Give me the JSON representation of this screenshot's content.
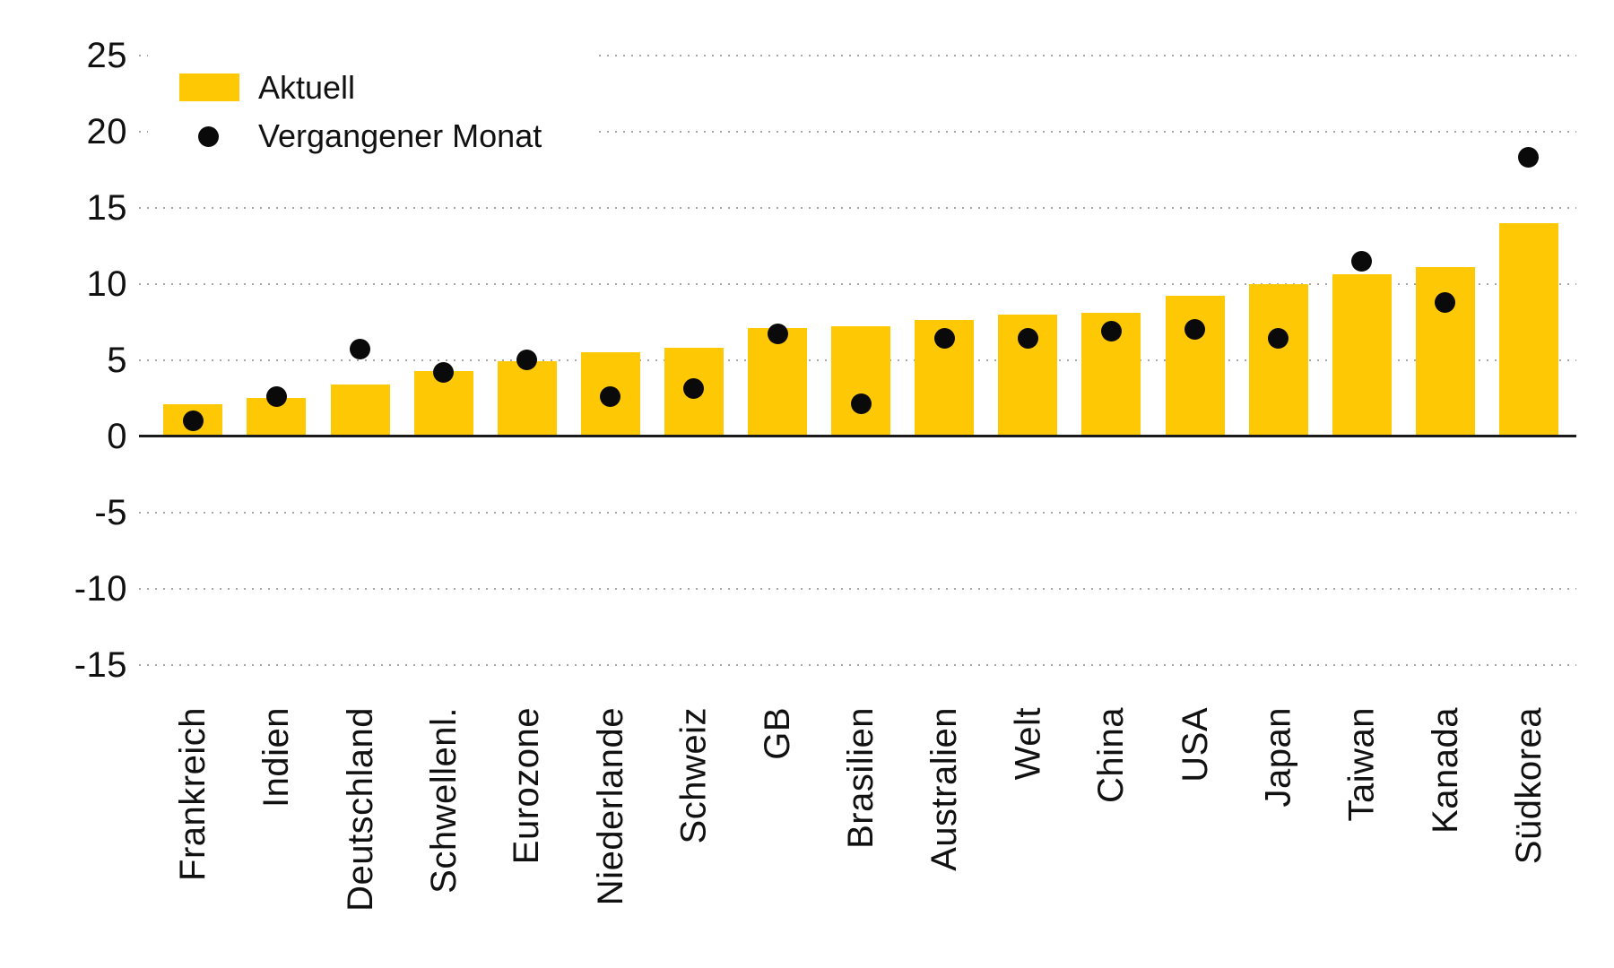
{
  "colors": {
    "bar": "#FFC805",
    "dot": "#0a0a0a",
    "grid": "#a6a6a6",
    "axis": "#1a1a1a",
    "text": "#111111",
    "background": "#ffffff"
  },
  "legend": {
    "items": [
      {
        "label": "Aktuell",
        "marker": "bar-swatch"
      },
      {
        "label": "Vergangener Monat",
        "marker": "dot"
      }
    ]
  },
  "chart_data": {
    "type": "bar",
    "title": "",
    "xlabel": "",
    "ylabel": "",
    "categories": [
      "Frankreich",
      "Indien",
      "Deutschland",
      "Schwellenl.",
      "Eurozone",
      "Niederlande",
      "Schweiz",
      "GB",
      "Brasilien",
      "Australien",
      "Welt",
      "China",
      "USA",
      "Japan",
      "Taiwan",
      "Kanada",
      "Südkorea"
    ],
    "series": [
      {
        "name": "Aktuell",
        "type": "bar",
        "values": [
          2.1,
          2.5,
          3.4,
          4.3,
          4.9,
          5.5,
          5.8,
          7.1,
          7.2,
          7.6,
          8.0,
          8.1,
          9.2,
          10.0,
          10.6,
          11.1,
          14.0
        ]
      },
      {
        "name": "Vergangener Monat",
        "type": "scatter",
        "values": [
          1.0,
          2.6,
          5.7,
          4.2,
          5.0,
          2.6,
          3.1,
          6.7,
          2.1,
          6.4,
          6.4,
          6.9,
          7.0,
          6.4,
          11.5,
          8.8,
          18.3
        ]
      }
    ],
    "yticks": [
      25,
      20,
      15,
      10,
      5,
      0,
      -5,
      -10,
      -15
    ],
    "ylim": [
      -17,
      28
    ],
    "grid": "horizontal-dotted",
    "zero_line": true,
    "legend_position": "top-left",
    "xlabel_rotation": -90
  }
}
